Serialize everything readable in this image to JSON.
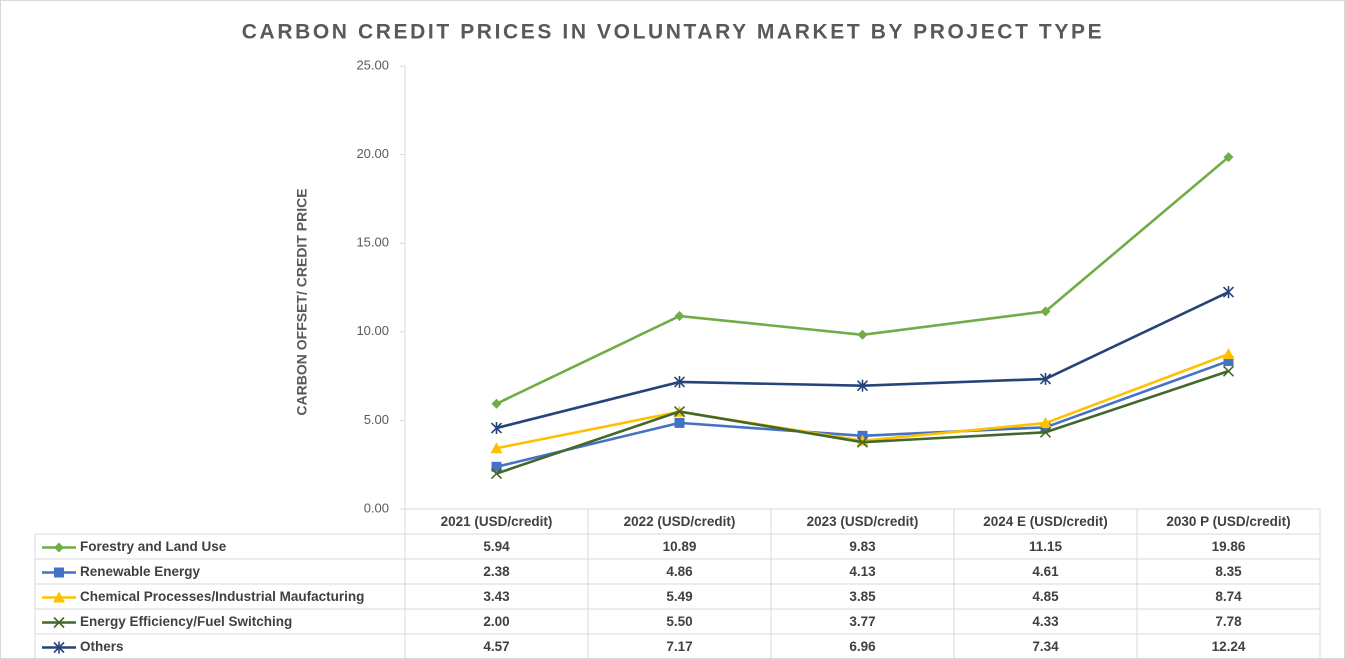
{
  "chart_data": {
    "type": "line",
    "title": "CARBON CREDIT PRICES IN VOLUNTARY MARKET BY PROJECT TYPE",
    "y_label": "CARBON OFFSET/ CREDIT PRICE",
    "categories": [
      "2021 (USD/credit)",
      "2022 (USD/credit)",
      "2023 (USD/credit)",
      "2024 E (USD/credit)",
      "2030 P (USD/credit)"
    ],
    "ylim": [
      0,
      25
    ],
    "yticks": [
      {
        "value": 0,
        "label": "0.00"
      },
      {
        "value": 5,
        "label": "5.00"
      },
      {
        "value": 10,
        "label": "10.00"
      },
      {
        "value": 15,
        "label": "15.00"
      },
      {
        "value": 20,
        "label": "20.00"
      },
      {
        "value": 25,
        "label": "25.00"
      }
    ],
    "grid": false,
    "series": [
      {
        "name": "Forestry and Land Use",
        "color": "#70ad47",
        "marker": "diamond",
        "values": [
          5.94,
          10.89,
          9.83,
          11.15,
          19.86
        ],
        "value_labels": [
          "5.94",
          "10.89",
          "9.83",
          "11.15",
          "19.86"
        ]
      },
      {
        "name": "Renewable Energy",
        "color": "#4472c4",
        "marker": "square",
        "values": [
          2.38,
          4.86,
          4.13,
          4.61,
          8.35
        ],
        "value_labels": [
          "2.38",
          "4.86",
          "4.13",
          "4.61",
          "8.35"
        ]
      },
      {
        "name": "Chemical Processes/Industrial Maufacturing",
        "color": "#ffc000",
        "marker": "triangle",
        "values": [
          3.43,
          5.49,
          3.85,
          4.85,
          8.74
        ],
        "value_labels": [
          "3.43",
          "5.49",
          "3.85",
          "4.85",
          "8.74"
        ]
      },
      {
        "name": "Energy Efficiency/Fuel Switching",
        "color": "#43682b",
        "marker": "x",
        "values": [
          2.0,
          5.5,
          3.77,
          4.33,
          7.78
        ],
        "value_labels": [
          "2.00",
          "5.50",
          "3.77",
          "4.33",
          "7.78"
        ]
      },
      {
        "name": "Others",
        "color": "#264478",
        "marker": "star",
        "values": [
          4.57,
          7.17,
          6.96,
          7.34,
          12.24
        ],
        "value_labels": [
          "4.57",
          "7.17",
          "6.96",
          "7.34",
          "12.24"
        ]
      }
    ]
  }
}
